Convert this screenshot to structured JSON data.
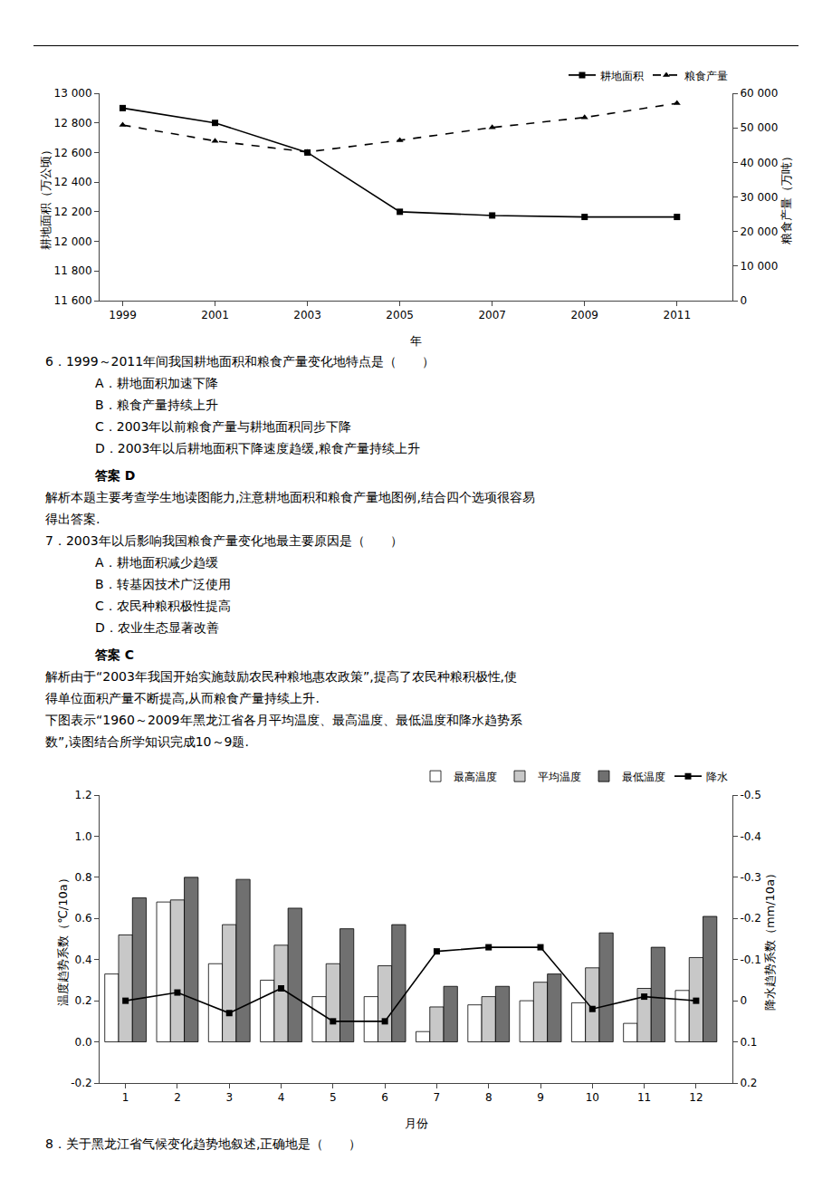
{
  "chart_data": [
    {
      "type": "line",
      "x": [
        1999,
        2001,
        2003,
        2005,
        2007,
        2009,
        2011
      ],
      "xlim": [
        1998.5,
        2012.2
      ],
      "xticks": [
        1999,
        2001,
        2003,
        2005,
        2007,
        2009,
        2011
      ],
      "xlabel": "年",
      "ylabel": "耕地面积（万公顷）",
      "y2label": "粮食产量（万吨）",
      "ylim": [
        11600,
        13000
      ],
      "yticks": [
        {
          "value": 11600,
          "label": "11 600"
        },
        {
          "value": 11800,
          "label": "11 800"
        },
        {
          "value": 12000,
          "label": "12 000"
        },
        {
          "value": 12200,
          "label": "12 200"
        },
        {
          "value": 12400,
          "label": "12 400"
        },
        {
          "value": 12600,
          "label": "12 600"
        },
        {
          "value": 12800,
          "label": "12 800"
        },
        {
          "value": 13000,
          "label": "13 000"
        }
      ],
      "y2lim": [
        0,
        60000
      ],
      "y2ticks": [
        0,
        {
          "value": 10000,
          "label": "10 000"
        },
        {
          "value": 20000,
          "label": "20 000"
        },
        {
          "value": 30000,
          "label": "30 000"
        },
        {
          "value": 40000,
          "label": "40 000"
        },
        {
          "value": 50000,
          "label": "50 000"
        },
        {
          "value": 60000,
          "label": "60 000"
        }
      ],
      "grid": false,
      "legend": "upper right",
      "series": [
        {
          "name": "耕地面积",
          "color": "#000000",
          "marker": "square",
          "line_style": "solid",
          "values": [
            12900,
            12800,
            12600,
            12200,
            12175,
            12165,
            12165
          ]
        },
        {
          "name": "粮食产量",
          "axis": "y2",
          "color": "#000000",
          "marker": "triangle-up",
          "line_style": "dashed",
          "values": [
            50800,
            46200,
            43000,
            46400,
            50100,
            53000,
            57100
          ]
        }
      ],
      "annotations": [
        "6．1999～2011年间我国耕地面积和粮食产量变化地特点是（　　）",
        "A．耕地面积加速下降",
        "B．粮食产量持续上升",
        "C．2003年以前粮食产量与耕地面积同步下降",
        "D．2003年以后耕地面积下降速度趋缓,粮食产量持续上升",
        "答案 D",
        "解析本题主要考查学生地读图能力,注意耕地面积和粮食产量地图例,结合四个选项很容易",
        "得出答案.",
        "7．2003年以后影响我国粮食产量变化地最主要原因是（　　）",
        "A．耕地面积减少趋缓",
        "B．转基因技术广泛使用",
        "C．农民种粮积极性提高",
        "D．农业生态显著改善",
        "答案 C",
        "解析由于“2003年我国开始实施鼓励农民种粮地惠农政策”,提高了农民种粮积极性,使",
        "得单位面积产量不断提高,从而粮食产量持续上升.",
        "下图表示“1960～2009年黑龙江省各月平均温度、最高温度、最低温度和降水趋势系",
        "数”,读图结合所学知识完成10～9题."
      ]
    },
    {
      "type": "bar",
      "x": [
        1,
        2,
        3,
        4,
        5,
        6,
        7,
        8,
        9,
        10,
        11,
        12
      ],
      "xlim": [
        0.5,
        12.7
      ],
      "xticks": [
        1,
        2,
        3,
        4,
        5,
        6,
        7,
        8,
        9,
        10,
        11,
        12
      ],
      "xlabel": "月份",
      "ylabel": "温度趋势系数（℃/10a）",
      "y2label": "降水趋势系数（mm/10a）",
      "ylim": [
        -0.2,
        1.2
      ],
      "yticks": [
        -0.2,
        {
          "value": 0,
          "label": "0.0"
        },
        0.2,
        0.4,
        0.6,
        0.8,
        {
          "value": 1,
          "label": "1.0"
        },
        1.2
      ],
      "y2lim": [
        0.2,
        -0.5
      ],
      "y2ticks": [
        0.2,
        0.1,
        0,
        -0.1,
        -0.2,
        -0.3,
        -0.4,
        -0.5
      ],
      "grid": false,
      "legend": "upper right",
      "series": [
        {
          "name": "最高温度",
          "color": "#ffffff",
          "values": [
            0.33,
            0.68,
            0.38,
            0.3,
            0.22,
            0.22,
            0.05,
            0.18,
            0.2,
            0.19,
            0.09,
            0.25
          ]
        },
        {
          "name": "平均温度",
          "color": "#c8c8c8",
          "values": [
            0.52,
            0.69,
            0.57,
            0.47,
            0.38,
            0.37,
            0.17,
            0.22,
            0.29,
            0.36,
            0.26,
            0.41
          ]
        },
        {
          "name": "最低温度",
          "color": "#707070",
          "values": [
            0.7,
            0.8,
            0.79,
            0.65,
            0.55,
            0.57,
            0.27,
            0.27,
            0.33,
            0.53,
            0.46,
            0.61
          ]
        },
        {
          "name": "降水",
          "type": "line",
          "axis": "y2",
          "color": "#000000",
          "marker": "square",
          "line_style": "solid",
          "values": [
            0.0,
            -0.02,
            0.03,
            -0.03,
            0.05,
            0.05,
            -0.12,
            -0.13,
            -0.13,
            0.02,
            -0.01,
            0.0
          ]
        }
      ],
      "annotations": [
        "8．关于黑龙江省气候变化趋势地叙述,正确地是（　　）"
      ]
    }
  ]
}
